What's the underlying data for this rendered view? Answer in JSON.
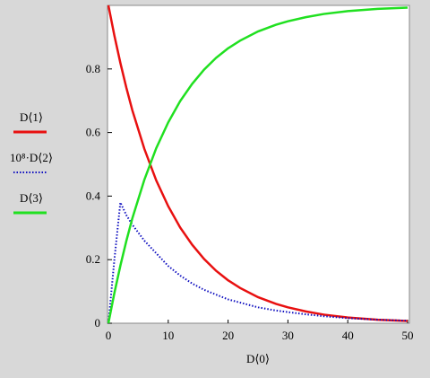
{
  "chart_data": {
    "type": "line",
    "x_label": "D⟨0⟩",
    "x": [
      0,
      1,
      2,
      3,
      4,
      6,
      8,
      10,
      12,
      14,
      16,
      18,
      20,
      22,
      25,
      28,
      30,
      33,
      36,
      40,
      45,
      50
    ],
    "series": [
      {
        "name": "D⟨1⟩",
        "color": "#e81010",
        "dash": "solid",
        "values": [
          1,
          0.905,
          0.819,
          0.741,
          0.67,
          0.549,
          0.449,
          0.368,
          0.301,
          0.247,
          0.202,
          0.165,
          0.135,
          0.111,
          0.082,
          0.061,
          0.05,
          0.037,
          0.027,
          0.018,
          0.011,
          0.007
        ]
      },
      {
        "name": "10⁸·D⟨2⟩",
        "color": "#1010c0",
        "dash": "dotted",
        "values": [
          0,
          0.2,
          0.38,
          0.34,
          0.31,
          0.26,
          0.22,
          0.18,
          0.15,
          0.125,
          0.105,
          0.09,
          0.075,
          0.065,
          0.05,
          0.04,
          0.035,
          0.028,
          0.022,
          0.016,
          0.011,
          0.008
        ]
      },
      {
        "name": "D⟨3⟩",
        "color": "#20e020",
        "dash": "solid",
        "values": [
          0,
          0.095,
          0.181,
          0.259,
          0.33,
          0.451,
          0.551,
          0.632,
          0.699,
          0.753,
          0.798,
          0.835,
          0.865,
          0.889,
          0.918,
          0.939,
          0.95,
          0.963,
          0.973,
          0.982,
          0.989,
          0.993
        ]
      }
    ],
    "xlim": [
      0,
      50
    ],
    "xticks": [
      0,
      10,
      20,
      30,
      40,
      50
    ],
    "ylim": [
      0,
      1
    ],
    "yticks": [
      0,
      0.2,
      0.4,
      0.6,
      0.8
    ]
  }
}
